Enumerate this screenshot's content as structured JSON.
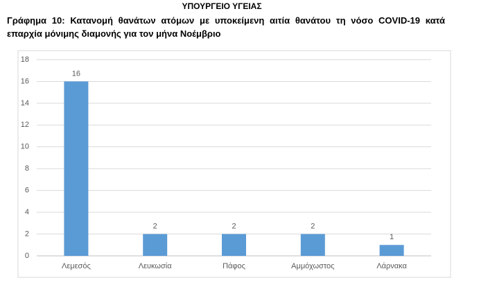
{
  "header": "ΥΠΟΥΡΓΕΙΟ ΥΓΕΙΑΣ",
  "chart_data": {
    "type": "bar",
    "title": "Γράφημα 10: Κατανομή θανάτων ατόμων με υποκείμενη αιτία θανάτου τη νόσο COVID-19 κατά επαρχία μόνιμης διαμονής για τον μήνα Νοέμβριο",
    "categories": [
      "Λεμεσός",
      "Λευκωσία",
      "Πάφος",
      "Αμμόχωστος",
      "Λάρνακα"
    ],
    "values": [
      16,
      2,
      2,
      2,
      1
    ],
    "color": "#5b9bd5",
    "ylim": [
      0,
      18
    ],
    "yticks": [
      0,
      2,
      4,
      6,
      8,
      10,
      12,
      14,
      16,
      18
    ],
    "grid": true
  }
}
